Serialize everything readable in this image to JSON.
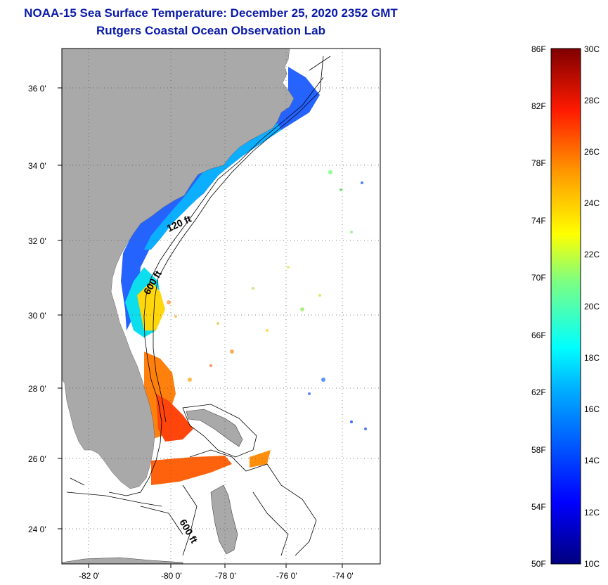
{
  "header": {
    "title": "NOAA-15 Sea Surface Temperature:  December 25, 2020 2352 GMT",
    "subtitle": "Rutgers Coastal Ocean Observation Lab"
  },
  "map": {
    "lat_ticks": [
      "36 0'",
      "34 0'",
      "32 0'",
      "30 0'",
      "28 0'",
      "26 0'",
      "24 0'"
    ],
    "lon_ticks": [
      "-82 0'",
      "-80 0'",
      "-78 0'",
      "-76 0'",
      "-74 0'"
    ],
    "contour_labels": [
      "120 ft",
      "600 ft",
      "600 ft"
    ],
    "colors": {
      "land": "#a9a9a9",
      "water": "#ffffff"
    }
  },
  "colorbar": {
    "fahrenheit_labels": [
      "86F",
      "82F",
      "78F",
      "74F",
      "70F",
      "66F",
      "62F",
      "58F",
      "54F",
      "50F"
    ],
    "celsius_labels": [
      "30C",
      "28C",
      "26C",
      "24C",
      "22C",
      "20C",
      "18C",
      "16C",
      "14C",
      "12C",
      "10C"
    ],
    "colormap": [
      "#00007f",
      "#0000ff",
      "#007fff",
      "#00ffff",
      "#7fff7f",
      "#ffff00",
      "#ff7f00",
      "#ff0000",
      "#7f0000"
    ]
  }
}
